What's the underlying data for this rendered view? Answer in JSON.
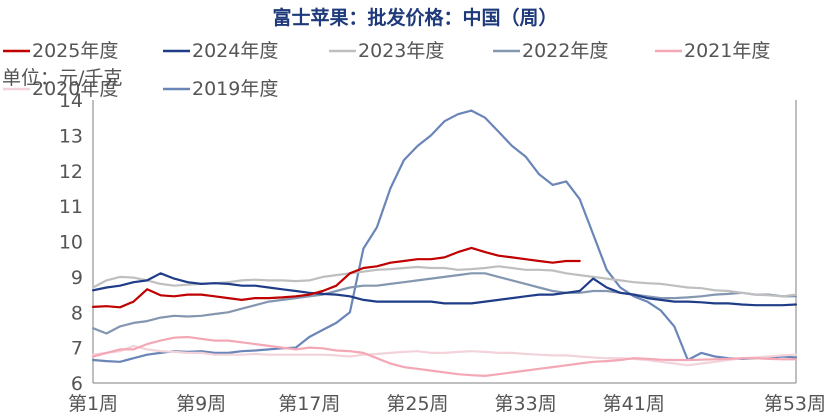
{
  "chart_data": {
    "type": "line",
    "title": "富士苹果：批发价格：中国（周）",
    "unit_label": "单位：元/千克",
    "ylim": [
      6,
      14
    ],
    "yticks": [
      6,
      7,
      8,
      9,
      10,
      11,
      12,
      13,
      14
    ],
    "xlim": [
      1,
      53
    ],
    "xticks": [
      1,
      9,
      17,
      25,
      33,
      41,
      53
    ],
    "xtick_labels": [
      "第1周",
      "第9周",
      "第17周",
      "第25周",
      "第33周",
      "第41周",
      "第53周"
    ],
    "grid": false,
    "legend_position": "top",
    "series": [
      {
        "name": "2025年度",
        "color": "#C00000",
        "x": [
          1,
          2,
          3,
          4,
          5,
          6,
          7,
          8,
          9,
          10,
          11,
          12,
          13,
          14,
          15,
          16,
          17,
          18,
          19,
          20,
          21,
          22,
          23,
          24,
          25,
          26,
          27,
          28,
          29,
          30,
          31,
          32,
          33,
          34,
          35,
          36,
          37
        ],
        "y": [
          8.15,
          8.17,
          8.14,
          8.3,
          8.65,
          8.48,
          8.45,
          8.5,
          8.5,
          8.45,
          8.4,
          8.35,
          8.4,
          8.4,
          8.42,
          8.45,
          8.5,
          8.6,
          8.75,
          9.1,
          9.25,
          9.3,
          9.4,
          9.45,
          9.5,
          9.5,
          9.55,
          9.7,
          9.82,
          9.7,
          9.6,
          9.55,
          9.5,
          9.45,
          9.4,
          9.45,
          9.45
        ]
      },
      {
        "name": "2024年度",
        "color": "#1F3C88",
        "x": [
          1,
          2,
          3,
          4,
          5,
          6,
          7,
          8,
          9,
          10,
          11,
          12,
          13,
          14,
          15,
          16,
          17,
          18,
          19,
          20,
          21,
          22,
          23,
          24,
          25,
          26,
          27,
          28,
          29,
          30,
          31,
          32,
          33,
          34,
          35,
          36,
          37,
          38,
          39,
          40,
          41,
          42,
          43,
          44,
          45,
          46,
          47,
          48,
          49,
          50,
          51,
          52,
          53
        ],
        "y": [
          8.62,
          8.7,
          8.75,
          8.85,
          8.9,
          9.1,
          8.95,
          8.85,
          8.8,
          8.82,
          8.8,
          8.75,
          8.75,
          8.7,
          8.65,
          8.6,
          8.55,
          8.52,
          8.5,
          8.45,
          8.35,
          8.3,
          8.3,
          8.3,
          8.3,
          8.3,
          8.25,
          8.25,
          8.25,
          8.3,
          8.35,
          8.4,
          8.45,
          8.5,
          8.5,
          8.55,
          8.6,
          8.95,
          8.7,
          8.55,
          8.5,
          8.4,
          8.35,
          8.3,
          8.3,
          8.28,
          8.25,
          8.25,
          8.22,
          8.2,
          8.2,
          8.2,
          8.22
        ]
      },
      {
        "name": "2023年度",
        "color": "#BFBFBF",
        "x": [
          1,
          2,
          3,
          4,
          5,
          6,
          7,
          8,
          9,
          10,
          11,
          12,
          13,
          14,
          15,
          16,
          17,
          18,
          19,
          20,
          21,
          22,
          23,
          24,
          25,
          26,
          27,
          28,
          29,
          30,
          31,
          32,
          33,
          34,
          35,
          36,
          37,
          38,
          39,
          40,
          41,
          42,
          43,
          44,
          45,
          46,
          47,
          48,
          49,
          50,
          51,
          52,
          53
        ],
        "y": [
          8.7,
          8.9,
          9.0,
          8.98,
          8.9,
          8.8,
          8.75,
          8.78,
          8.8,
          8.82,
          8.85,
          8.9,
          8.92,
          8.9,
          8.9,
          8.88,
          8.9,
          9.0,
          9.05,
          9.1,
          9.15,
          9.2,
          9.22,
          9.25,
          9.28,
          9.25,
          9.25,
          9.2,
          9.22,
          9.25,
          9.3,
          9.25,
          9.2,
          9.2,
          9.18,
          9.1,
          9.05,
          9.0,
          8.95,
          8.9,
          8.85,
          8.82,
          8.8,
          8.75,
          8.7,
          8.68,
          8.62,
          8.6,
          8.55,
          8.5,
          8.48,
          8.45,
          8.5
        ]
      },
      {
        "name": "2022年度",
        "color": "#8497B0",
        "x": [
          1,
          2,
          3,
          4,
          5,
          6,
          7,
          8,
          9,
          10,
          11,
          12,
          13,
          14,
          15,
          16,
          17,
          18,
          19,
          20,
          21,
          22,
          23,
          24,
          25,
          26,
          27,
          28,
          29,
          30,
          31,
          32,
          33,
          34,
          35,
          36,
          37,
          38,
          39,
          40,
          41,
          42,
          43,
          44,
          45,
          46,
          47,
          48,
          49,
          50,
          51,
          52,
          53
        ],
        "y": [
          7.55,
          7.4,
          7.6,
          7.7,
          7.75,
          7.85,
          7.9,
          7.88,
          7.9,
          7.95,
          8.0,
          8.1,
          8.2,
          8.3,
          8.35,
          8.4,
          8.45,
          8.5,
          8.6,
          8.7,
          8.75,
          8.75,
          8.8,
          8.85,
          8.9,
          8.95,
          9.0,
          9.05,
          9.1,
          9.1,
          9.0,
          8.9,
          8.8,
          8.7,
          8.6,
          8.55,
          8.55,
          8.6,
          8.6,
          8.55,
          8.5,
          8.45,
          8.4,
          8.4,
          8.42,
          8.45,
          8.5,
          8.52,
          8.55,
          8.5,
          8.5,
          8.45,
          8.45
        ]
      },
      {
        "name": "2021年度",
        "color": "#F4A7B5",
        "x": [
          1,
          2,
          3,
          4,
          5,
          6,
          7,
          8,
          9,
          10,
          11,
          12,
          13,
          14,
          15,
          16,
          17,
          18,
          19,
          20,
          21,
          22,
          23,
          24,
          25,
          26,
          27,
          28,
          29,
          30,
          31,
          32,
          33,
          34,
          35,
          36,
          37,
          38,
          39,
          40,
          41,
          42,
          43,
          44,
          45,
          46,
          47,
          48,
          49,
          50,
          51,
          52,
          53
        ],
        "y": [
          6.75,
          6.85,
          6.95,
          6.95,
          7.1,
          7.2,
          7.28,
          7.3,
          7.25,
          7.2,
          7.2,
          7.15,
          7.1,
          7.05,
          7.0,
          6.95,
          7.0,
          6.98,
          6.92,
          6.9,
          6.85,
          6.7,
          6.55,
          6.45,
          6.4,
          6.35,
          6.3,
          6.25,
          6.22,
          6.2,
          6.25,
          6.3,
          6.35,
          6.4,
          6.45,
          6.5,
          6.55,
          6.6,
          6.62,
          6.65,
          6.7,
          6.68,
          6.66,
          6.65,
          6.65,
          6.66,
          6.67,
          6.68,
          6.7,
          6.7,
          6.68,
          6.67,
          6.67
        ]
      },
      {
        "name": "2020年度",
        "color": "#F2D3DA",
        "x": [
          1,
          2,
          3,
          4,
          5,
          6,
          7,
          8,
          9,
          10,
          11,
          12,
          13,
          14,
          15,
          16,
          17,
          18,
          19,
          20,
          21,
          22,
          23,
          24,
          25,
          26,
          27,
          28,
          29,
          30,
          31,
          32,
          33,
          34,
          35,
          36,
          37,
          38,
          39,
          40,
          41,
          42,
          43,
          44,
          45,
          46,
          47,
          48,
          49,
          50,
          51,
          52,
          53
        ],
        "y": [
          6.8,
          6.85,
          6.9,
          7.05,
          6.95,
          6.9,
          6.88,
          6.85,
          6.85,
          6.8,
          6.8,
          6.8,
          6.82,
          6.8,
          6.8,
          6.8,
          6.8,
          6.8,
          6.78,
          6.75,
          6.8,
          6.82,
          6.85,
          6.88,
          6.9,
          6.85,
          6.85,
          6.88,
          6.9,
          6.88,
          6.85,
          6.85,
          6.82,
          6.8,
          6.78,
          6.78,
          6.75,
          6.72,
          6.7,
          6.7,
          6.68,
          6.65,
          6.6,
          6.55,
          6.5,
          6.55,
          6.6,
          6.65,
          6.7,
          6.72,
          6.75,
          6.78,
          6.8
        ]
      },
      {
        "name": "2019年度",
        "color": "#6A85B8",
        "x": [
          1,
          2,
          3,
          4,
          5,
          6,
          7,
          8,
          9,
          10,
          11,
          12,
          13,
          14,
          15,
          16,
          17,
          18,
          19,
          20,
          21,
          22,
          23,
          24,
          25,
          26,
          27,
          28,
          29,
          30,
          31,
          32,
          33,
          34,
          35,
          36,
          37,
          38,
          39,
          40,
          41,
          42,
          43,
          44,
          45,
          46,
          47,
          48,
          49,
          50,
          51,
          52,
          53
        ],
        "y": [
          6.65,
          6.62,
          6.6,
          6.7,
          6.8,
          6.85,
          6.9,
          6.88,
          6.9,
          6.85,
          6.85,
          6.9,
          6.92,
          6.95,
          6.98,
          7.0,
          7.3,
          7.5,
          7.7,
          8.0,
          9.8,
          10.4,
          11.5,
          12.3,
          12.7,
          13.0,
          13.4,
          13.6,
          13.7,
          13.5,
          13.1,
          12.7,
          12.4,
          11.9,
          11.6,
          11.7,
          11.2,
          10.2,
          9.2,
          8.7,
          8.45,
          8.3,
          8.05,
          7.6,
          6.65,
          6.85,
          6.75,
          6.7,
          6.68,
          6.7,
          6.72,
          6.75,
          6.72
        ]
      }
    ]
  }
}
